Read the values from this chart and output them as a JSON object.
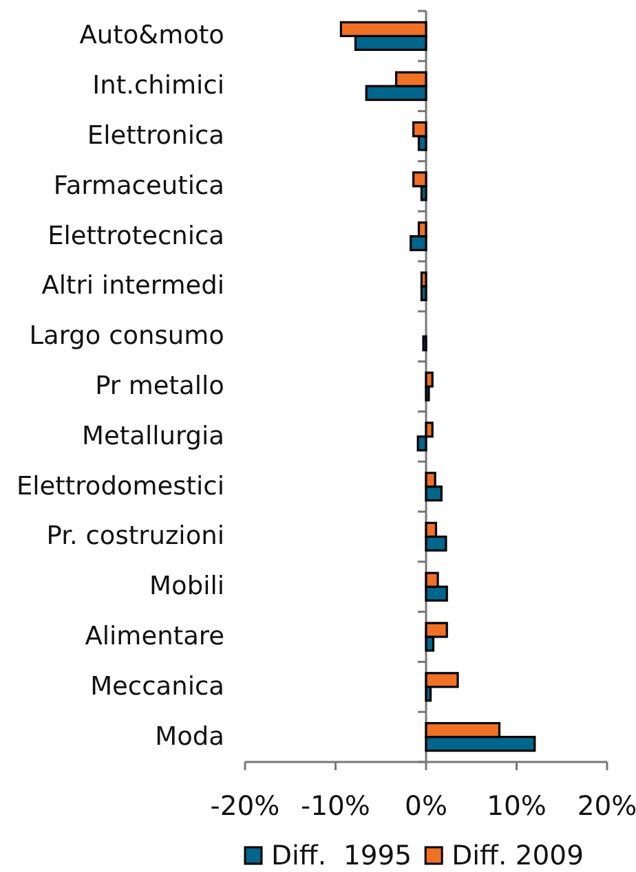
{
  "chart_data": {
    "type": "bar",
    "orientation": "horizontal",
    "categories": [
      "Auto&moto",
      "Int.chimici",
      "Elettronica",
      "Farmaceutica",
      "Elettrotecnica",
      "Altri intermedi",
      "Largo consumo",
      "Pr metallo",
      "Metallurgia",
      "Elettrodomestici",
      "Pr. costruzioni",
      "Mobili",
      "Alimentare",
      "Meccanica",
      "Moda"
    ],
    "series": [
      {
        "name": "Diff.  1995",
        "color": "#00668c",
        "values": [
          -7.8,
          -6.6,
          -0.8,
          -0.5,
          -1.7,
          -0.5,
          -0.3,
          0.3,
          -0.9,
          1.7,
          2.2,
          2.3,
          0.8,
          0.5,
          12.0
        ]
      },
      {
        "name": "Diff. 2009",
        "color": "#f07124",
        "values": [
          -9.4,
          -3.3,
          -1.4,
          -1.4,
          -0.8,
          -0.5,
          0,
          0.7,
          0.7,
          1.0,
          1.1,
          1.3,
          2.3,
          3.5,
          8.1
        ]
      }
    ],
    "xlim": [
      -20,
      20
    ],
    "xticks": [
      {
        "value": -20,
        "label": "-20%"
      },
      {
        "value": -10,
        "label": "-10%"
      },
      {
        "value": 0,
        "label": "0%"
      },
      {
        "value": 10,
        "label": "10%"
      },
      {
        "value": 20,
        "label": "20%"
      }
    ],
    "legend": "bottom"
  }
}
